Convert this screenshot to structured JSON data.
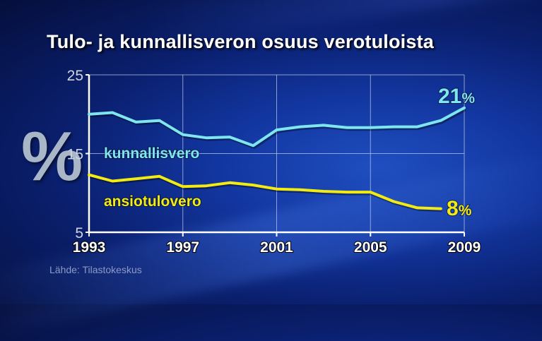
{
  "chart_data": {
    "type": "line",
    "title": "Tulo- ja kunnallisveron osuus verotuloista",
    "ylabel": "%",
    "xlim": [
      1993,
      2009
    ],
    "ylim": [
      5,
      25
    ],
    "x_ticks": [
      "1993",
      "1997",
      "2001",
      "2005",
      "2009"
    ],
    "y_ticks": [
      "5",
      "15",
      "25"
    ],
    "grid": true,
    "series": [
      {
        "name": "kunnallisvero",
        "color": "#7fe6f0",
        "x": [
          1993,
          1994,
          1995,
          1996,
          1997,
          1998,
          1999,
          2000,
          2001,
          2002,
          2003,
          2004,
          2005,
          2006,
          2007,
          2008,
          2009
        ],
        "values": [
          20.0,
          20.2,
          19.0,
          19.2,
          17.4,
          17.0,
          17.1,
          16.0,
          18.0,
          18.4,
          18.6,
          18.3,
          18.3,
          18.4,
          18.4,
          19.2,
          20.8
        ],
        "end_label_number": "21",
        "end_label_unit": "%"
      },
      {
        "name": "ansiotulovero",
        "color": "#f2ea14",
        "x": [
          1993,
          1994,
          1995,
          1996,
          1997,
          1998,
          1999,
          2000,
          2001,
          2002,
          2003,
          2004,
          2005,
          2006,
          2007,
          2008
        ],
        "values": [
          12.3,
          11.5,
          11.8,
          12.1,
          10.8,
          10.9,
          11.3,
          11.0,
          10.5,
          10.4,
          10.2,
          10.1,
          10.1,
          8.9,
          8.1,
          8.0
        ],
        "end_label_number": "8",
        "end_label_unit": "%"
      }
    ],
    "colors": {
      "axis": "#ffffff",
      "grid": "#b8c4e6"
    }
  },
  "source": "Lähde: Tilastokeskus"
}
